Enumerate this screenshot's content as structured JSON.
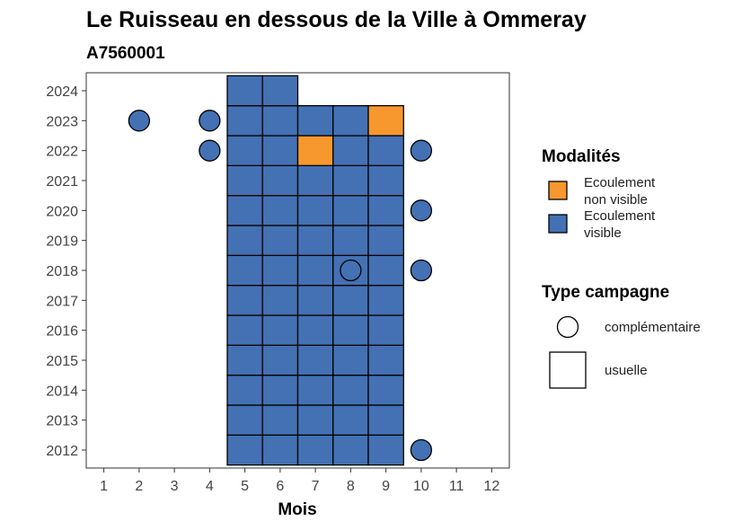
{
  "chart_data": {
    "type": "heatmap",
    "title": "Le Ruisseau en dessous de la Ville à Ommeray",
    "subtitle": "A7560001",
    "xlabel": "Mois",
    "ylabel": "",
    "x_ticks": [
      "1",
      "2",
      "3",
      "4",
      "5",
      "6",
      "7",
      "8",
      "9",
      "10",
      "11",
      "12"
    ],
    "y_ticks": [
      "2012",
      "2013",
      "2014",
      "2015",
      "2016",
      "2017",
      "2018",
      "2019",
      "2020",
      "2021",
      "2022",
      "2023",
      "2024"
    ],
    "xlim": [
      0.5,
      12.5
    ],
    "ylim": [
      2011.4,
      2024.6
    ],
    "grid": false,
    "colors": {
      "Ecoulement non visible": "#f7982f",
      "Ecoulement visible": "#4371b4"
    },
    "observations": [
      {
        "year": 2012,
        "month": 5,
        "modalite": "Ecoulement visible",
        "type": "usuelle"
      },
      {
        "year": 2012,
        "month": 6,
        "modalite": "Ecoulement visible",
        "type": "usuelle"
      },
      {
        "year": 2012,
        "month": 7,
        "modalite": "Ecoulement visible",
        "type": "usuelle"
      },
      {
        "year": 2012,
        "month": 8,
        "modalite": "Ecoulement visible",
        "type": "usuelle"
      },
      {
        "year": 2012,
        "month": 9,
        "modalite": "Ecoulement visible",
        "type": "usuelle"
      },
      {
        "year": 2012,
        "month": 10,
        "modalite": "Ecoulement visible",
        "type": "complémentaire"
      },
      {
        "year": 2013,
        "month": 5,
        "modalite": "Ecoulement visible",
        "type": "usuelle"
      },
      {
        "year": 2013,
        "month": 6,
        "modalite": "Ecoulement visible",
        "type": "usuelle"
      },
      {
        "year": 2013,
        "month": 7,
        "modalite": "Ecoulement visible",
        "type": "usuelle"
      },
      {
        "year": 2013,
        "month": 8,
        "modalite": "Ecoulement visible",
        "type": "usuelle"
      },
      {
        "year": 2013,
        "month": 9,
        "modalite": "Ecoulement visible",
        "type": "usuelle"
      },
      {
        "year": 2014,
        "month": 5,
        "modalite": "Ecoulement visible",
        "type": "usuelle"
      },
      {
        "year": 2014,
        "month": 6,
        "modalite": "Ecoulement visible",
        "type": "usuelle"
      },
      {
        "year": 2014,
        "month": 7,
        "modalite": "Ecoulement visible",
        "type": "usuelle"
      },
      {
        "year": 2014,
        "month": 8,
        "modalite": "Ecoulement visible",
        "type": "usuelle"
      },
      {
        "year": 2014,
        "month": 9,
        "modalite": "Ecoulement visible",
        "type": "usuelle"
      },
      {
        "year": 2015,
        "month": 5,
        "modalite": "Ecoulement visible",
        "type": "usuelle"
      },
      {
        "year": 2015,
        "month": 6,
        "modalite": "Ecoulement visible",
        "type": "usuelle"
      },
      {
        "year": 2015,
        "month": 7,
        "modalite": "Ecoulement visible",
        "type": "usuelle"
      },
      {
        "year": 2015,
        "month": 8,
        "modalite": "Ecoulement visible",
        "type": "usuelle"
      },
      {
        "year": 2015,
        "month": 9,
        "modalite": "Ecoulement visible",
        "type": "usuelle"
      },
      {
        "year": 2016,
        "month": 5,
        "modalite": "Ecoulement visible",
        "type": "usuelle"
      },
      {
        "year": 2016,
        "month": 6,
        "modalite": "Ecoulement visible",
        "type": "usuelle"
      },
      {
        "year": 2016,
        "month": 7,
        "modalite": "Ecoulement visible",
        "type": "usuelle"
      },
      {
        "year": 2016,
        "month": 8,
        "modalite": "Ecoulement visible",
        "type": "usuelle"
      },
      {
        "year": 2016,
        "month": 9,
        "modalite": "Ecoulement visible",
        "type": "usuelle"
      },
      {
        "year": 2017,
        "month": 5,
        "modalite": "Ecoulement visible",
        "type": "usuelle"
      },
      {
        "year": 2017,
        "month": 6,
        "modalite": "Ecoulement visible",
        "type": "usuelle"
      },
      {
        "year": 2017,
        "month": 7,
        "modalite": "Ecoulement visible",
        "type": "usuelle"
      },
      {
        "year": 2017,
        "month": 8,
        "modalite": "Ecoulement visible",
        "type": "usuelle"
      },
      {
        "year": 2017,
        "month": 9,
        "modalite": "Ecoulement visible",
        "type": "usuelle"
      },
      {
        "year": 2018,
        "month": 5,
        "modalite": "Ecoulement visible",
        "type": "usuelle"
      },
      {
        "year": 2018,
        "month": 6,
        "modalite": "Ecoulement visible",
        "type": "usuelle"
      },
      {
        "year": 2018,
        "month": 7,
        "modalite": "Ecoulement visible",
        "type": "usuelle"
      },
      {
        "year": 2018,
        "month": 8,
        "modalite": "Ecoulement visible",
        "type": "usuelle"
      },
      {
        "year": 2018,
        "month": 8,
        "modalite": "Ecoulement visible",
        "type": "complémentaire"
      },
      {
        "year": 2018,
        "month": 9,
        "modalite": "Ecoulement visible",
        "type": "usuelle"
      },
      {
        "year": 2018,
        "month": 10,
        "modalite": "Ecoulement visible",
        "type": "complémentaire"
      },
      {
        "year": 2019,
        "month": 5,
        "modalite": "Ecoulement visible",
        "type": "usuelle"
      },
      {
        "year": 2019,
        "month": 6,
        "modalite": "Ecoulement visible",
        "type": "usuelle"
      },
      {
        "year": 2019,
        "month": 7,
        "modalite": "Ecoulement visible",
        "type": "usuelle"
      },
      {
        "year": 2019,
        "month": 8,
        "modalite": "Ecoulement visible",
        "type": "usuelle"
      },
      {
        "year": 2019,
        "month": 9,
        "modalite": "Ecoulement visible",
        "type": "usuelle"
      },
      {
        "year": 2020,
        "month": 5,
        "modalite": "Ecoulement visible",
        "type": "usuelle"
      },
      {
        "year": 2020,
        "month": 6,
        "modalite": "Ecoulement visible",
        "type": "usuelle"
      },
      {
        "year": 2020,
        "month": 7,
        "modalite": "Ecoulement visible",
        "type": "usuelle"
      },
      {
        "year": 2020,
        "month": 8,
        "modalite": "Ecoulement visible",
        "type": "usuelle"
      },
      {
        "year": 2020,
        "month": 9,
        "modalite": "Ecoulement visible",
        "type": "usuelle"
      },
      {
        "year": 2020,
        "month": 10,
        "modalite": "Ecoulement visible",
        "type": "complémentaire"
      },
      {
        "year": 2021,
        "month": 5,
        "modalite": "Ecoulement visible",
        "type": "usuelle"
      },
      {
        "year": 2021,
        "month": 6,
        "modalite": "Ecoulement visible",
        "type": "usuelle"
      },
      {
        "year": 2021,
        "month": 7,
        "modalite": "Ecoulement visible",
        "type": "usuelle"
      },
      {
        "year": 2021,
        "month": 8,
        "modalite": "Ecoulement visible",
        "type": "usuelle"
      },
      {
        "year": 2021,
        "month": 9,
        "modalite": "Ecoulement visible",
        "type": "usuelle"
      },
      {
        "year": 2022,
        "month": 4,
        "modalite": "Ecoulement visible",
        "type": "complémentaire"
      },
      {
        "year": 2022,
        "month": 5,
        "modalite": "Ecoulement visible",
        "type": "usuelle"
      },
      {
        "year": 2022,
        "month": 6,
        "modalite": "Ecoulement visible",
        "type": "usuelle"
      },
      {
        "year": 2022,
        "month": 7,
        "modalite": "Ecoulement non visible",
        "type": "usuelle"
      },
      {
        "year": 2022,
        "month": 8,
        "modalite": "Ecoulement visible",
        "type": "usuelle"
      },
      {
        "year": 2022,
        "month": 9,
        "modalite": "Ecoulement visible",
        "type": "usuelle"
      },
      {
        "year": 2022,
        "month": 10,
        "modalite": "Ecoulement visible",
        "type": "complémentaire"
      },
      {
        "year": 2023,
        "month": 2,
        "modalite": "Ecoulement visible",
        "type": "complémentaire"
      },
      {
        "year": 2023,
        "month": 4,
        "modalite": "Ecoulement visible",
        "type": "complémentaire"
      },
      {
        "year": 2023,
        "month": 5,
        "modalite": "Ecoulement visible",
        "type": "usuelle"
      },
      {
        "year": 2023,
        "month": 6,
        "modalite": "Ecoulement visible",
        "type": "usuelle"
      },
      {
        "year": 2023,
        "month": 7,
        "modalite": "Ecoulement visible",
        "type": "usuelle"
      },
      {
        "year": 2023,
        "month": 8,
        "modalite": "Ecoulement visible",
        "type": "usuelle"
      },
      {
        "year": 2023,
        "month": 9,
        "modalite": "Ecoulement non visible",
        "type": "usuelle"
      },
      {
        "year": 2024,
        "month": 5,
        "modalite": "Ecoulement visible",
        "type": "usuelle"
      },
      {
        "year": 2024,
        "month": 6,
        "modalite": "Ecoulement visible",
        "type": "usuelle"
      }
    ],
    "legend": {
      "placement": "right",
      "modalites_title": "Modalités",
      "modalites": [
        {
          "lines": [
            "Ecoulement",
            "non visible"
          ],
          "key": "Ecoulement non visible"
        },
        {
          "lines": [
            "Ecoulement",
            "visible"
          ],
          "key": "Ecoulement visible"
        }
      ],
      "type_title": "Type campagne",
      "types": [
        {
          "label": "complémentaire",
          "shape": "circle"
        },
        {
          "label": "usuelle",
          "shape": "square"
        }
      ]
    }
  }
}
